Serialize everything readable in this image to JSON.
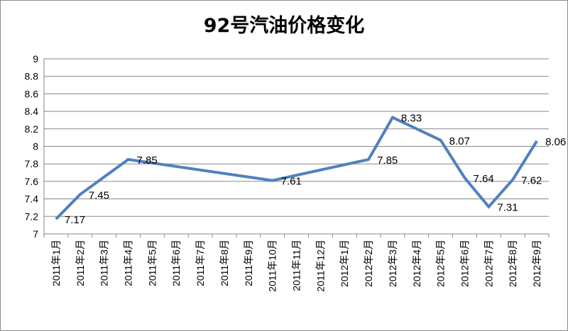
{
  "chart_data": {
    "type": "line",
    "title": "92号汽油价格变化",
    "xlabel": "",
    "ylabel": "",
    "ylim": [
      7,
      9
    ],
    "yticks": [
      "7",
      "7.2",
      "7.4",
      "7.6",
      "7.8",
      "8",
      "8.2",
      "8.4",
      "8.6",
      "8.8",
      "9"
    ],
    "grid": true,
    "legend": "none",
    "line_color": "#4f81bd",
    "categories": [
      "2011年1月",
      "2011年2月",
      "2011年3月",
      "2011年4月",
      "2011年5月",
      "2011年6月",
      "2011年7月",
      "2011年8月",
      "2011年9月",
      "2011年10月",
      "2011年11月",
      "2011年12月",
      "2012年1月",
      "2012年2月",
      "2012年3月",
      "2012年4月",
      "2012年5月",
      "2012年6月",
      "2012年7月",
      "2012年8月",
      "2012年9月"
    ],
    "points": [
      {
        "index": 0,
        "value": 7.17,
        "label": "7.17"
      },
      {
        "index": 1,
        "value": 7.45,
        "label": "7.45"
      },
      {
        "index": 3,
        "value": 7.85,
        "label": "7.85"
      },
      {
        "index": 9,
        "value": 7.61,
        "label": "7.61"
      },
      {
        "index": 13,
        "value": 7.85,
        "label": "7.85"
      },
      {
        "index": 14,
        "value": 8.33,
        "label": "8.33"
      },
      {
        "index": 16,
        "value": 8.07,
        "label": "8.07"
      },
      {
        "index": 17,
        "value": 7.64,
        "label": "7.64"
      },
      {
        "index": 18,
        "value": 7.31,
        "label": "7.31"
      },
      {
        "index": 19,
        "value": 7.62,
        "label": "7.62"
      },
      {
        "index": 20,
        "value": 8.06,
        "label": "8.06"
      }
    ]
  }
}
